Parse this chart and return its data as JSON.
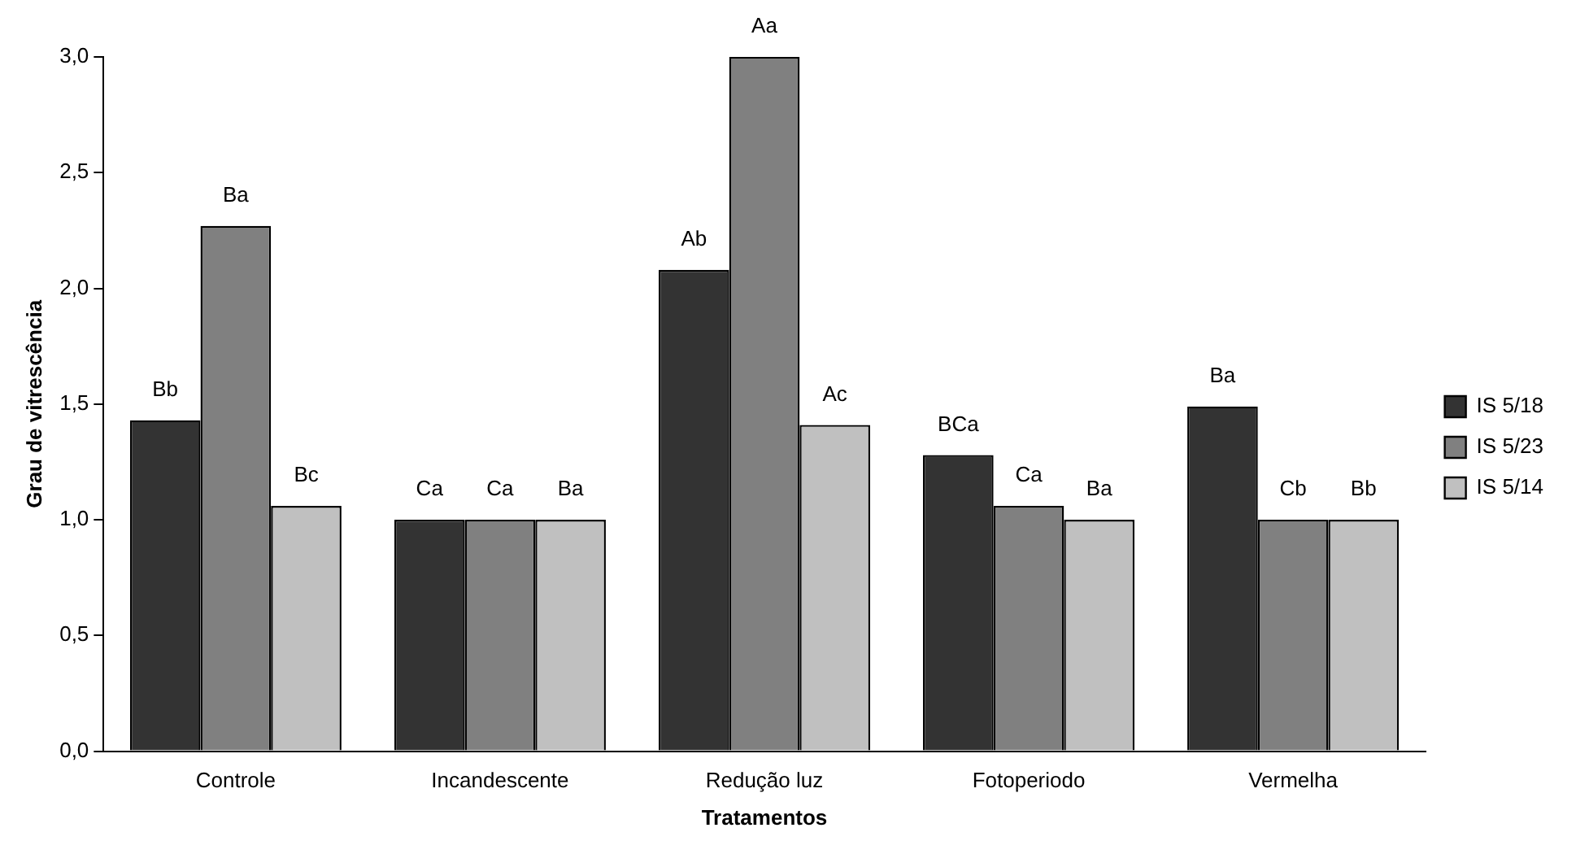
{
  "chart_data": {
    "type": "bar",
    "xlabel": "Tratamentos",
    "ylabel": "Grau de vitrescência",
    "categories": [
      "Controle",
      "Incandescente",
      "Redução luz",
      "Fotoperiodo",
      "Vermelha"
    ],
    "series": [
      {
        "name": "IS 5/18",
        "color": "#333333",
        "values": [
          1.43,
          1.0,
          2.08,
          1.28,
          1.49
        ],
        "value_labels": [
          "Bb",
          "Ca",
          "Ab",
          "BCa",
          "Ba"
        ]
      },
      {
        "name": "IS 5/23",
        "color": "#808080",
        "values": [
          2.27,
          1.0,
          3.0,
          1.06,
          1.0
        ],
        "value_labels": [
          "Ba",
          "Ca",
          "Aa",
          "Ca",
          "Cb"
        ]
      },
      {
        "name": "IS 5/14",
        "color": "#c0c0c0",
        "values": [
          1.06,
          1.0,
          1.41,
          1.0,
          1.0
        ],
        "value_labels": [
          "Bc",
          "Ba",
          "Ac",
          "Ba",
          "Bb"
        ]
      }
    ],
    "ylim": [
      0,
      3
    ],
    "yticks": [
      {
        "value": 0,
        "label": "0,0"
      },
      {
        "value": 0.5,
        "label": "0,5"
      },
      {
        "value": 1,
        "label": "1,0"
      },
      {
        "value": 1.5,
        "label": "1,5"
      },
      {
        "value": 2,
        "label": "2,0"
      },
      {
        "value": 2.5,
        "label": "2,5"
      },
      {
        "value": 3,
        "label": "3,0"
      }
    ],
    "grid": false,
    "legend": "right"
  }
}
